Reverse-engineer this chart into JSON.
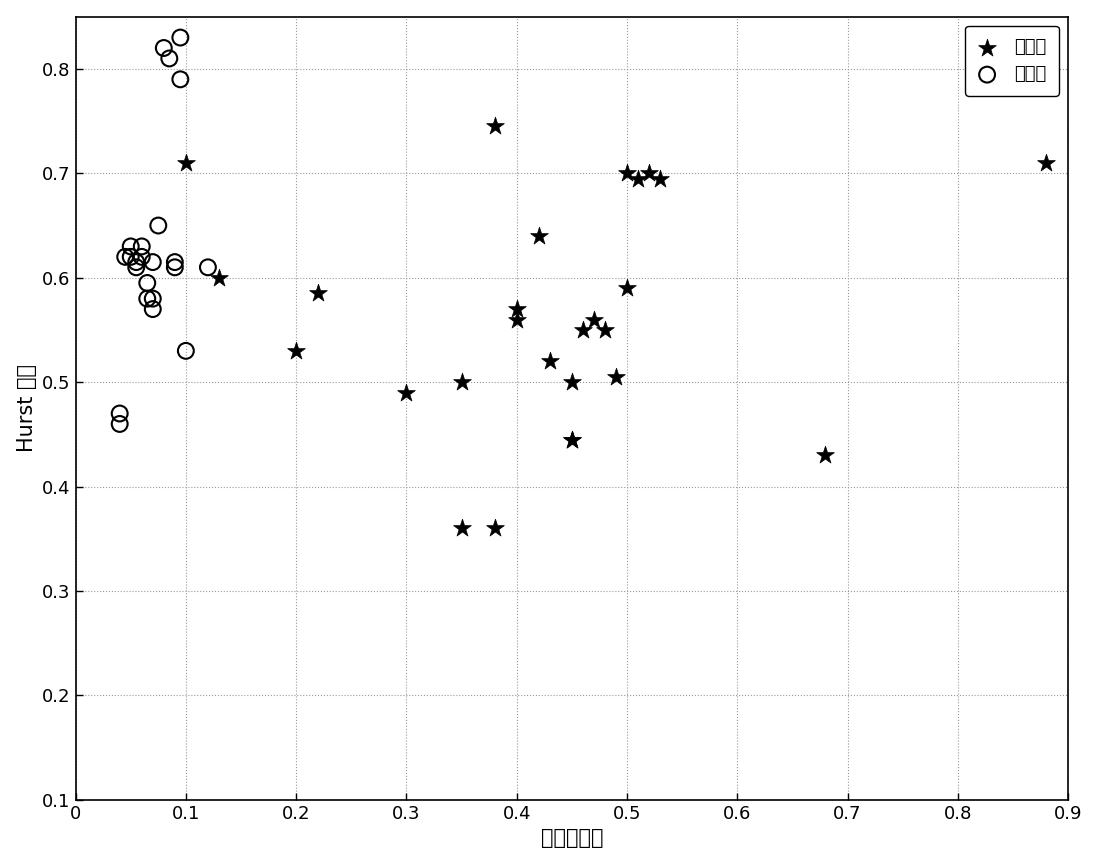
{
  "defect_x": [
    0.1,
    0.13,
    0.2,
    0.22,
    0.3,
    0.35,
    0.35,
    0.38,
    0.38,
    0.4,
    0.4,
    0.42,
    0.43,
    0.45,
    0.45,
    0.45,
    0.46,
    0.47,
    0.48,
    0.49,
    0.5,
    0.5,
    0.51,
    0.52,
    0.53,
    0.68,
    0.88
  ],
  "defect_y": [
    0.71,
    0.6,
    0.53,
    0.585,
    0.49,
    0.5,
    0.36,
    0.36,
    0.745,
    0.57,
    0.56,
    0.64,
    0.52,
    0.445,
    0.445,
    0.5,
    0.55,
    0.56,
    0.55,
    0.505,
    0.59,
    0.7,
    0.695,
    0.7,
    0.695,
    0.43,
    0.71
  ],
  "nodefect_x": [
    0.04,
    0.04,
    0.045,
    0.05,
    0.05,
    0.055,
    0.055,
    0.06,
    0.06,
    0.065,
    0.065,
    0.07,
    0.07,
    0.07,
    0.075,
    0.08,
    0.085,
    0.09,
    0.09,
    0.095,
    0.095,
    0.1,
    0.12
  ],
  "nodefect_y": [
    0.47,
    0.46,
    0.62,
    0.63,
    0.62,
    0.61,
    0.615,
    0.62,
    0.63,
    0.58,
    0.595,
    0.58,
    0.57,
    0.615,
    0.65,
    0.82,
    0.81,
    0.61,
    0.615,
    0.79,
    0.83,
    0.53,
    0.61
  ],
  "xlabel": "分形线性度",
  "ylabel": "Hurst 指数",
  "legend_defect": "有缺陷",
  "legend_nodefect": "无缺陷",
  "xlim": [
    0,
    0.9
  ],
  "ylim": [
    0.1,
    0.85
  ],
  "xticks": [
    0,
    0.1,
    0.2,
    0.3,
    0.4,
    0.5,
    0.6,
    0.7,
    0.8,
    0.9
  ],
  "yticks": [
    0.1,
    0.2,
    0.3,
    0.4,
    0.5,
    0.6,
    0.7,
    0.8
  ],
  "background_color": "#ffffff",
  "grid_color": "#999999",
  "marker_color": "#000000"
}
